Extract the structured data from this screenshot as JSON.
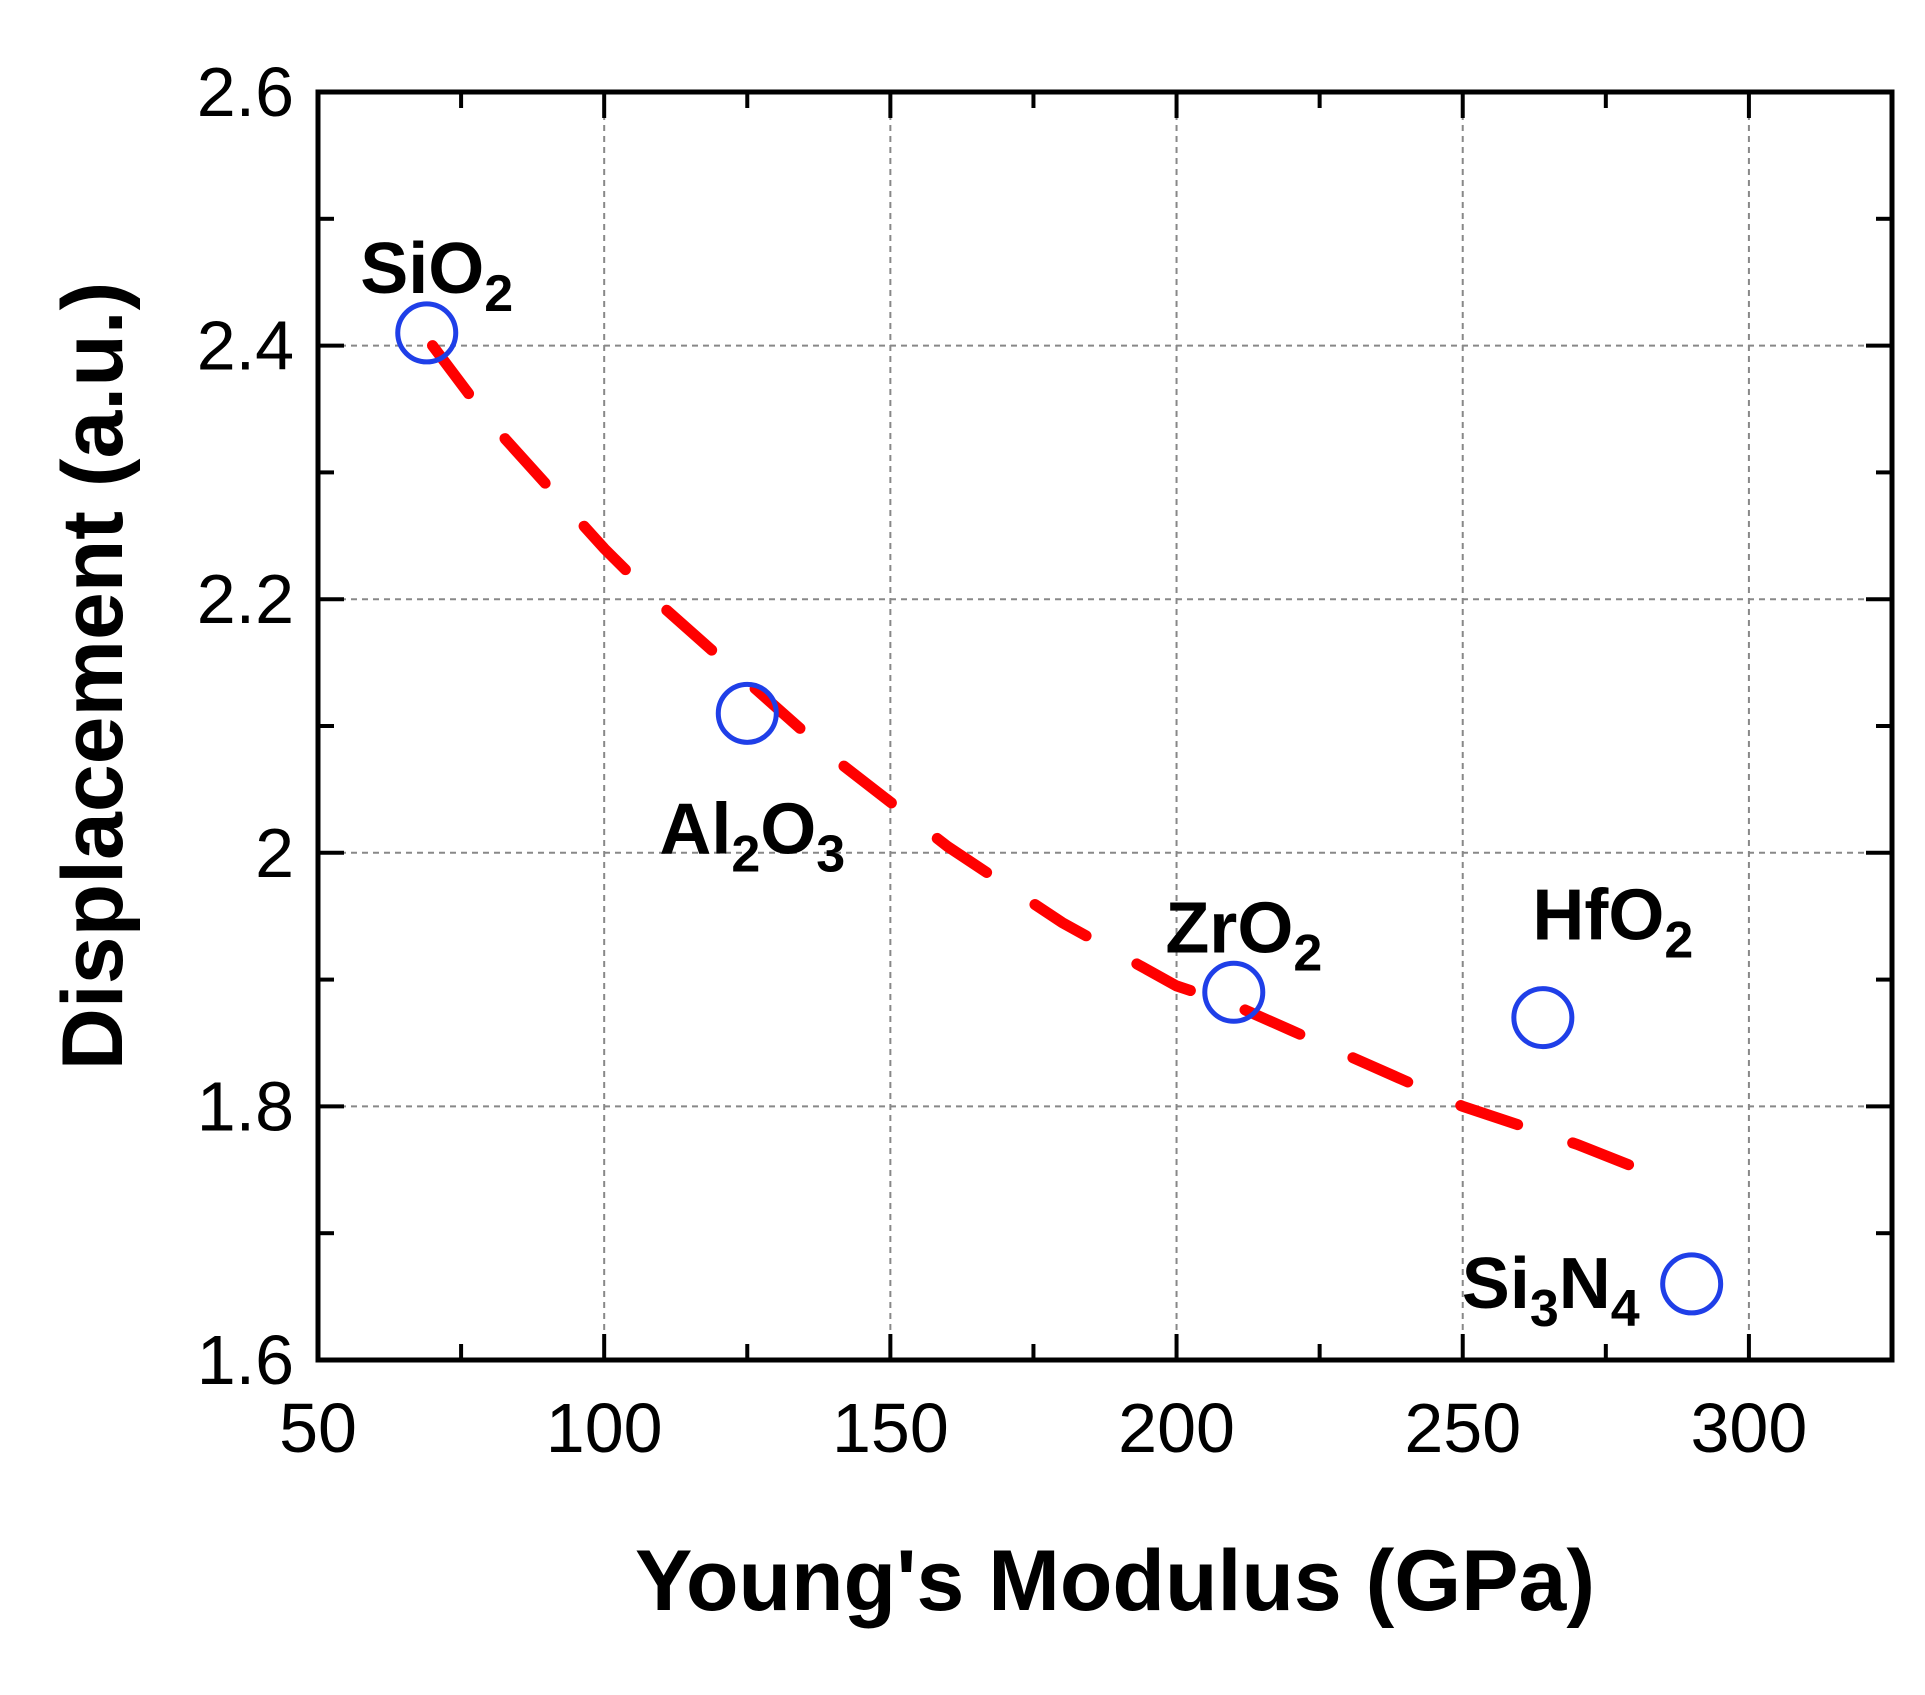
{
  "chart_data": {
    "type": "scatter",
    "xlabel": "Young's Modulus (GPa)",
    "ylabel": "Displacement (a.u.)",
    "xlim": [
      50,
      325
    ],
    "ylim": [
      1.6,
      2.6
    ],
    "grid": true,
    "x_ticks": [
      50,
      100,
      150,
      200,
      250,
      300
    ],
    "x_tick_labels": [
      "50",
      "100",
      "150",
      "200",
      "250",
      "300"
    ],
    "y_ticks": [
      1.6,
      1.8,
      2.0,
      2.2,
      2.4,
      2.6
    ],
    "y_tick_labels": [
      "1.6",
      "1.8",
      "2",
      "2.2",
      "2.4",
      "2.6"
    ],
    "points": [
      {
        "name": "SiO2",
        "label": "SiO",
        "subscripts": [
          "2"
        ],
        "x": 69,
        "y": 2.41,
        "label_anchor": "above"
      },
      {
        "name": "Al2O3",
        "label": "Al2O3",
        "parts": [
          {
            "t": "Al",
            "sub": false
          },
          {
            "t": "2",
            "sub": true
          },
          {
            "t": "O",
            "sub": false
          },
          {
            "t": "3",
            "sub": true
          }
        ],
        "x": 125,
        "y": 2.11,
        "label_anchor": "below"
      },
      {
        "name": "ZrO2",
        "parts": [
          {
            "t": "ZrO",
            "sub": false
          },
          {
            "t": "2",
            "sub": true
          }
        ],
        "x": 210,
        "y": 1.89,
        "label_anchor": "above"
      },
      {
        "name": "HfO2",
        "parts": [
          {
            "t": "HfO",
            "sub": false
          },
          {
            "t": "2",
            "sub": true
          }
        ],
        "x": 264,
        "y": 1.87,
        "label_anchor": "above-right"
      },
      {
        "name": "Si3N4",
        "parts": [
          {
            "t": "Si",
            "sub": false
          },
          {
            "t": "3",
            "sub": true
          },
          {
            "t": "N",
            "sub": false
          },
          {
            "t": "4",
            "sub": true
          }
        ],
        "x": 290,
        "y": 1.66,
        "label_anchor": "left"
      }
    ],
    "fit": {
      "name": "trend-fit",
      "style": "dashed",
      "x": [
        70,
        80,
        90,
        100,
        110,
        120,
        130,
        140,
        150,
        160,
        170,
        180,
        190,
        200,
        210,
        220,
        230,
        240,
        250,
        260,
        270,
        284
      ],
      "y": [
        2.4,
        2.34,
        2.29,
        2.24,
        2.195,
        2.155,
        2.115,
        2.075,
        2.04,
        2.005,
        1.975,
        1.945,
        1.92,
        1.895,
        1.88,
        1.86,
        1.84,
        1.82,
        1.8,
        1.785,
        1.77,
        1.745
      ]
    },
    "colors": {
      "marker": "#1f3fe8",
      "fit": "#ff0000",
      "grid": "#888888",
      "axis": "#000000"
    }
  }
}
